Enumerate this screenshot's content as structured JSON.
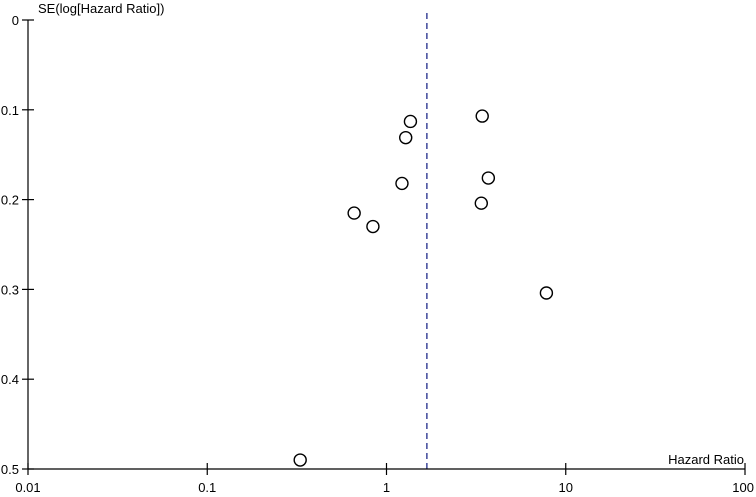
{
  "chart_data": {
    "type": "scatter",
    "subtype": "funnel-plot",
    "xlabel": "Hazard Ratio",
    "ylabel": "SE(log[Hazard Ratio])",
    "x_scale": "log",
    "xlim": [
      0.01,
      100
    ],
    "ylim": [
      0,
      0.5
    ],
    "y_inverted": true,
    "x_ticks": [
      "0.01",
      "0.1",
      "1",
      "10",
      "100"
    ],
    "x_tick_values": [
      0.01,
      0.1,
      1,
      10,
      100
    ],
    "y_ticks": [
      "0",
      "0.1",
      "0.2",
      "0.3",
      "0.4",
      "0.5"
    ],
    "y_tick_values": [
      0,
      0.1,
      0.2,
      0.3,
      0.4,
      0.5
    ],
    "reference_line_x": 1.68,
    "reference_line_color": "#1f2a8a",
    "points": [
      {
        "x": 1.36,
        "y": 0.113
      },
      {
        "x": 1.28,
        "y": 0.131
      },
      {
        "x": 1.22,
        "y": 0.182
      },
      {
        "x": 0.66,
        "y": 0.215
      },
      {
        "x": 0.84,
        "y": 0.23
      },
      {
        "x": 3.42,
        "y": 0.107
      },
      {
        "x": 3.7,
        "y": 0.176
      },
      {
        "x": 3.38,
        "y": 0.204
      },
      {
        "x": 7.8,
        "y": 0.304
      },
      {
        "x": 0.33,
        "y": 0.49
      }
    ]
  }
}
